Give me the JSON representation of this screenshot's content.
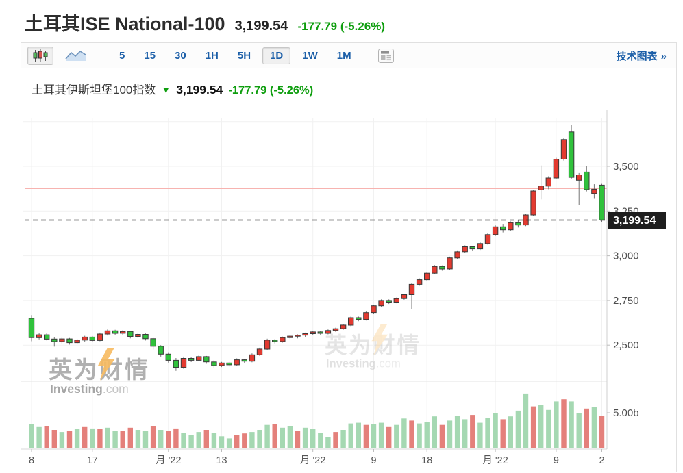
{
  "header": {
    "title": "土耳其ISE National-100",
    "price": "3,199.54",
    "change": "-177.79",
    "change_pct": "(-5.26%)"
  },
  "toolbar": {
    "chart_type_buttons": [
      {
        "name": "candlestick-chart-type",
        "selected": true
      },
      {
        "name": "area-chart-type",
        "selected": false
      }
    ],
    "intervals": [
      {
        "label": "5",
        "selected": false
      },
      {
        "label": "15",
        "selected": false
      },
      {
        "label": "30",
        "selected": false
      },
      {
        "label": "1H",
        "selected": false
      },
      {
        "label": "5H",
        "selected": false
      },
      {
        "label": "1D",
        "selected": true
      },
      {
        "label": "1W",
        "selected": false
      },
      {
        "label": "1M",
        "selected": false
      }
    ],
    "news_button": "news-layout",
    "link": "技术图表",
    "link_arrow": "»"
  },
  "chart": {
    "title": "土耳其伊斯坦堡100指数",
    "arrow": "▼",
    "price": "3,199.54",
    "change": "-177.79",
    "change_pct": "(-5.26%)",
    "last_price_label": "3,199.54",
    "watermark_cn": "英为财情",
    "watermark_en_bold": "Investing",
    "watermark_en_light": ".com"
  },
  "colors": {
    "up_candle_red": "#e33a30",
    "down_candle_green": "#30c23c",
    "candle_border": "#3a3a3a",
    "wick": "#757575",
    "vol_up_red": "#e4807b",
    "vol_down_green": "#a5d8b2",
    "prev_close_line_pink": "#f7b3b0",
    "last_price_dash": "#333333",
    "price_tag_bg": "#1e1e1e",
    "grid": "#f1f1f1",
    "axis": "#cfcfcf",
    "axis_text": "#4d4d4d",
    "link_blue": "#1c5fa8",
    "change_green": "#0f9e0f",
    "watermark_gray": "#9a9a9a",
    "watermark_bolt_orange": "#f5a733"
  },
  "chart_data": {
    "type": "candlestick+volume",
    "title": "土耳其伊斯坦堡100指数 (1D)",
    "ylabel": "price",
    "ylim": [
      2320,
      3790
    ],
    "y_ticks": [
      {
        "value": 3500,
        "label": "3,500"
      },
      {
        "value": 3250,
        "label": "3,250"
      },
      {
        "value": 3000,
        "label": "3,000"
      },
      {
        "value": 2750,
        "label": "2,750"
      },
      {
        "value": 2500,
        "label": "2,500"
      }
    ],
    "extra_gridline_value": 3750,
    "x_ticks": [
      {
        "i": 0,
        "label": "8"
      },
      {
        "i": 8,
        "label": "17"
      },
      {
        "i": 18,
        "label": "月 '22"
      },
      {
        "i": 25,
        "label": "13"
      },
      {
        "i": 37,
        "label": "月 '22"
      },
      {
        "i": 45,
        "label": "9"
      },
      {
        "i": 52,
        "label": "18"
      },
      {
        "i": 61,
        "label": "月 '22"
      },
      {
        "i": 69,
        "label": "9"
      },
      {
        "i": 75,
        "label": "2"
      }
    ],
    "prev_close_line": 3377.33,
    "last_price": 3199.54,
    "last_price_label": "3,199.54",
    "volume_axis_tick": {
      "value": 5.0,
      "label": "5.00b"
    },
    "candles_ohlc": [
      [
        2650,
        2668,
        2522,
        2542
      ],
      [
        2542,
        2568,
        2532,
        2558
      ],
      [
        2558,
        2566,
        2526,
        2534
      ],
      [
        2534,
        2544,
        2492,
        2520
      ],
      [
        2520,
        2542,
        2510,
        2535
      ],
      [
        2535,
        2540,
        2503,
        2514
      ],
      [
        2514,
        2535,
        2506,
        2528
      ],
      [
        2528,
        2552,
        2520,
        2545
      ],
      [
        2545,
        2551,
        2518,
        2526
      ],
      [
        2526,
        2570,
        2522,
        2562
      ],
      [
        2562,
        2588,
        2554,
        2580
      ],
      [
        2580,
        2586,
        2556,
        2566
      ],
      [
        2566,
        2584,
        2558,
        2576
      ],
      [
        2576,
        2581,
        2538,
        2548
      ],
      [
        2548,
        2568,
        2540,
        2560
      ],
      [
        2560,
        2565,
        2526,
        2536
      ],
      [
        2536,
        2541,
        2476,
        2494
      ],
      [
        2494,
        2500,
        2436,
        2450
      ],
      [
        2450,
        2460,
        2402,
        2415
      ],
      [
        2415,
        2428,
        2356,
        2376
      ],
      [
        2376,
        2436,
        2368,
        2426
      ],
      [
        2426,
        2434,
        2405,
        2415
      ],
      [
        2415,
        2442,
        2409,
        2436
      ],
      [
        2436,
        2440,
        2396,
        2406
      ],
      [
        2406,
        2416,
        2374,
        2386
      ],
      [
        2386,
        2406,
        2378,
        2400
      ],
      [
        2400,
        2406,
        2380,
        2390
      ],
      [
        2390,
        2426,
        2386,
        2418
      ],
      [
        2418,
        2424,
        2398,
        2410
      ],
      [
        2410,
        2454,
        2404,
        2446
      ],
      [
        2446,
        2486,
        2440,
        2478
      ],
      [
        2478,
        2536,
        2472,
        2528
      ],
      [
        2528,
        2534,
        2510,
        2520
      ],
      [
        2520,
        2548,
        2514,
        2542
      ],
      [
        2542,
        2554,
        2534,
        2550
      ],
      [
        2550,
        2560,
        2538,
        2556
      ],
      [
        2556,
        2570,
        2546,
        2564
      ],
      [
        2564,
        2580,
        2556,
        2574
      ],
      [
        2574,
        2578,
        2558,
        2566
      ],
      [
        2566,
        2588,
        2560,
        2582
      ],
      [
        2582,
        2598,
        2574,
        2592
      ],
      [
        2592,
        2618,
        2586,
        2612
      ],
      [
        2612,
        2660,
        2606,
        2654
      ],
      [
        2654,
        2660,
        2634,
        2644
      ],
      [
        2644,
        2688,
        2638,
        2682
      ],
      [
        2682,
        2726,
        2676,
        2720
      ],
      [
        2720,
        2756,
        2714,
        2750
      ],
      [
        2750,
        2756,
        2730,
        2740
      ],
      [
        2740,
        2766,
        2734,
        2760
      ],
      [
        2760,
        2788,
        2754,
        2782
      ],
      [
        2782,
        2848,
        2700,
        2840
      ],
      [
        2840,
        2874,
        2832,
        2866
      ],
      [
        2866,
        2910,
        2858,
        2902
      ],
      [
        2902,
        2948,
        2896,
        2940
      ],
      [
        2940,
        2946,
        2916,
        2926
      ],
      [
        2926,
        2995,
        2920,
        2988
      ],
      [
        2988,
        3030,
        2980,
        3022
      ],
      [
        3022,
        3058,
        3015,
        3050
      ],
      [
        3050,
        3056,
        3026,
        3038
      ],
      [
        3038,
        3076,
        3032,
        3068
      ],
      [
        3068,
        3125,
        3062,
        3118
      ],
      [
        3118,
        3170,
        3110,
        3162
      ],
      [
        3162,
        3178,
        3130,
        3145
      ],
      [
        3145,
        3192,
        3140,
        3185
      ],
      [
        3185,
        3198,
        3158,
        3172
      ],
      [
        3172,
        3235,
        3166,
        3228
      ],
      [
        3228,
        3370,
        3222,
        3362
      ],
      [
        3368,
        3505,
        3315,
        3390
      ],
      [
        3390,
        3445,
        3372,
        3435
      ],
      [
        3435,
        3548,
        3428,
        3540
      ],
      [
        3540,
        3660,
        3532,
        3650
      ],
      [
        3692,
        3730,
        3428,
        3438
      ],
      [
        3422,
        3462,
        3282,
        3452
      ],
      [
        3468,
        3500,
        3360,
        3370
      ],
      [
        3348,
        3400,
        3322,
        3372
      ],
      [
        3395,
        3402,
        3190,
        3199.54
      ]
    ],
    "volumes_billions": [
      3.4,
      3.0,
      3.1,
      2.6,
      2.3,
      2.5,
      2.7,
      3.0,
      2.8,
      2.7,
      2.9,
      2.5,
      2.4,
      2.9,
      2.6,
      2.5,
      3.1,
      2.6,
      2.4,
      2.8,
      2.2,
      1.9,
      2.3,
      2.6,
      2.2,
      1.7,
      1.4,
      1.9,
      2.1,
      2.3,
      2.6,
      3.3,
      3.4,
      2.9,
      3.1,
      2.5,
      2.9,
      2.7,
      2.2,
      1.6,
      2.3,
      2.6,
      3.5,
      3.6,
      3.3,
      3.4,
      3.6,
      3.0,
      3.3,
      4.2,
      3.9,
      3.5,
      3.7,
      4.5,
      3.3,
      3.9,
      4.6,
      4.1,
      4.7,
      3.6,
      4.3,
      4.9,
      4.1,
      4.5,
      5.3,
      7.7,
      5.9,
      6.1,
      5.4,
      6.6,
      6.9,
      6.6,
      4.9,
      5.6,
      5.8,
      4.6
    ],
    "volume_colors": [
      "g",
      "g",
      "r",
      "r",
      "g",
      "r",
      "g",
      "r",
      "g",
      "r",
      "g",
      "g",
      "r",
      "r",
      "g",
      "g",
      "r",
      "g",
      "r",
      "r",
      "g",
      "g",
      "g",
      "r",
      "g",
      "g",
      "g",
      "r",
      "r",
      "g",
      "g",
      "g",
      "r",
      "g",
      "g",
      "r",
      "g",
      "g",
      "g",
      "g",
      "r",
      "g",
      "g",
      "g",
      "r",
      "g",
      "g",
      "r",
      "g",
      "g",
      "r",
      "g",
      "g",
      "g",
      "r",
      "g",
      "g",
      "g",
      "r",
      "g",
      "g",
      "g",
      "r",
      "g",
      "g",
      "g",
      "r",
      "g",
      "g",
      "g",
      "r",
      "g",
      "g",
      "r",
      "g",
      "r"
    ]
  }
}
